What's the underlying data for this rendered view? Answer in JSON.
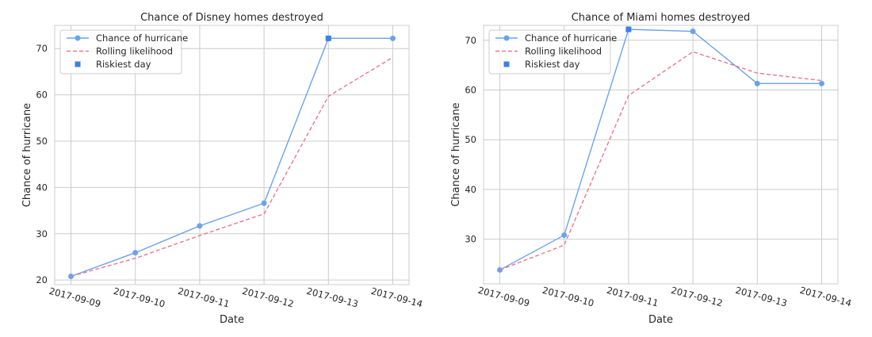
{
  "chart_data": [
    {
      "type": "line",
      "title": "Chance of Disney homes destroyed",
      "xlabel": "Date",
      "ylabel": "Chance of hurricane",
      "categories": [
        "2017-09-09",
        "2017-09-10",
        "2017-09-11",
        "2017-09-12",
        "2017-09-13",
        "2017-09-14"
      ],
      "ylim": [
        19,
        75
      ],
      "yticks": [
        20,
        30,
        40,
        50,
        60,
        70
      ],
      "grid": true,
      "legend_placement": "top-left",
      "series": [
        {
          "name": "Chance of hurricane",
          "style": "solid-with-circles",
          "color": "#6ba3ec",
          "values": [
            20.8,
            25.9,
            31.7,
            36.6,
            72.2,
            72.2
          ]
        },
        {
          "name": "Rolling likelihood",
          "style": "dashed",
          "color": "#e8788e",
          "values": [
            20.8,
            24.7,
            29.6,
            34.3,
            59.7,
            68.1
          ]
        },
        {
          "name": "Riskiest day",
          "style": "square-marker",
          "color": "#3f7fe0",
          "x": [
            "2017-09-13"
          ],
          "values": [
            72.2
          ]
        }
      ]
    },
    {
      "type": "line",
      "title": "Chance of Miami homes destroyed",
      "xlabel": "Date",
      "ylabel": "Chance of hurricane",
      "categories": [
        "2017-09-09",
        "2017-09-10",
        "2017-09-11",
        "2017-09-12",
        "2017-09-13",
        "2017-09-14"
      ],
      "ylim": [
        21,
        73
      ],
      "yticks": [
        30,
        40,
        50,
        60,
        70
      ],
      "grid": true,
      "legend_placement": "top-left",
      "series": [
        {
          "name": "Chance of hurricane",
          "style": "solid-with-circles",
          "color": "#6ba3ec",
          "values": [
            23.8,
            30.8,
            72.2,
            71.8,
            61.3,
            61.3
          ]
        },
        {
          "name": "Rolling likelihood",
          "style": "dashed",
          "color": "#e8788e",
          "values": [
            23.8,
            28.8,
            58.9,
            67.7,
            63.4,
            61.9
          ]
        },
        {
          "name": "Riskiest day",
          "style": "square-marker",
          "color": "#3f7fe0",
          "x": [
            "2017-09-11"
          ],
          "values": [
            72.2
          ]
        }
      ]
    }
  ]
}
